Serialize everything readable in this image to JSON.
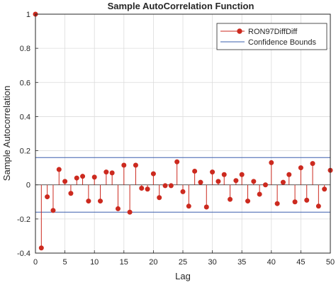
{
  "chart_data": {
    "type": "stem",
    "title": "Sample AutoCorrelation Function",
    "xlabel": "Lag",
    "ylabel": "Sample Autocorrelation",
    "xlim": [
      0,
      50
    ],
    "ylim": [
      -0.4,
      1
    ],
    "x_ticks": [
      0,
      5,
      10,
      15,
      20,
      25,
      30,
      35,
      40,
      45,
      50
    ],
    "y_ticks": [
      -0.4,
      -0.2,
      0,
      0.2,
      0.4,
      0.6,
      0.8,
      1
    ],
    "grid": true,
    "legend_position": "top-right",
    "series": [
      {
        "name": "RON97DiffDiff",
        "color": "#cc2a1f",
        "x": [
          0,
          1,
          2,
          3,
          4,
          5,
          6,
          7,
          8,
          9,
          10,
          11,
          12,
          13,
          14,
          15,
          16,
          17,
          18,
          19,
          20,
          21,
          22,
          23,
          24,
          25,
          26,
          27,
          28,
          29,
          30,
          31,
          32,
          33,
          34,
          35,
          36,
          37,
          38,
          39,
          40,
          41,
          42,
          43,
          44,
          45,
          46,
          47,
          48,
          49,
          50
        ],
        "values": [
          1,
          -0.37,
          -0.07,
          -0.15,
          0.09,
          0.02,
          -0.05,
          0.04,
          0.05,
          -0.095,
          0.045,
          -0.095,
          0.075,
          0.07,
          -0.14,
          0.115,
          -0.16,
          0.115,
          -0.02,
          -0.025,
          0.065,
          -0.075,
          -0.005,
          -0.005,
          0.135,
          -0.04,
          -0.125,
          0.08,
          0.015,
          -0.13,
          0.075,
          0.02,
          0.06,
          -0.085,
          0.025,
          0.06,
          -0.095,
          0.02,
          -0.055,
          0.0,
          0.13,
          -0.11,
          0.015,
          0.06,
          -0.1,
          0.1,
          -0.09,
          0.125,
          -0.125,
          -0.025,
          0.085
        ]
      },
      {
        "name": "Confidence Bounds",
        "color": "#3a5fad",
        "upper": 0.16,
        "lower": -0.16
      }
    ]
  }
}
